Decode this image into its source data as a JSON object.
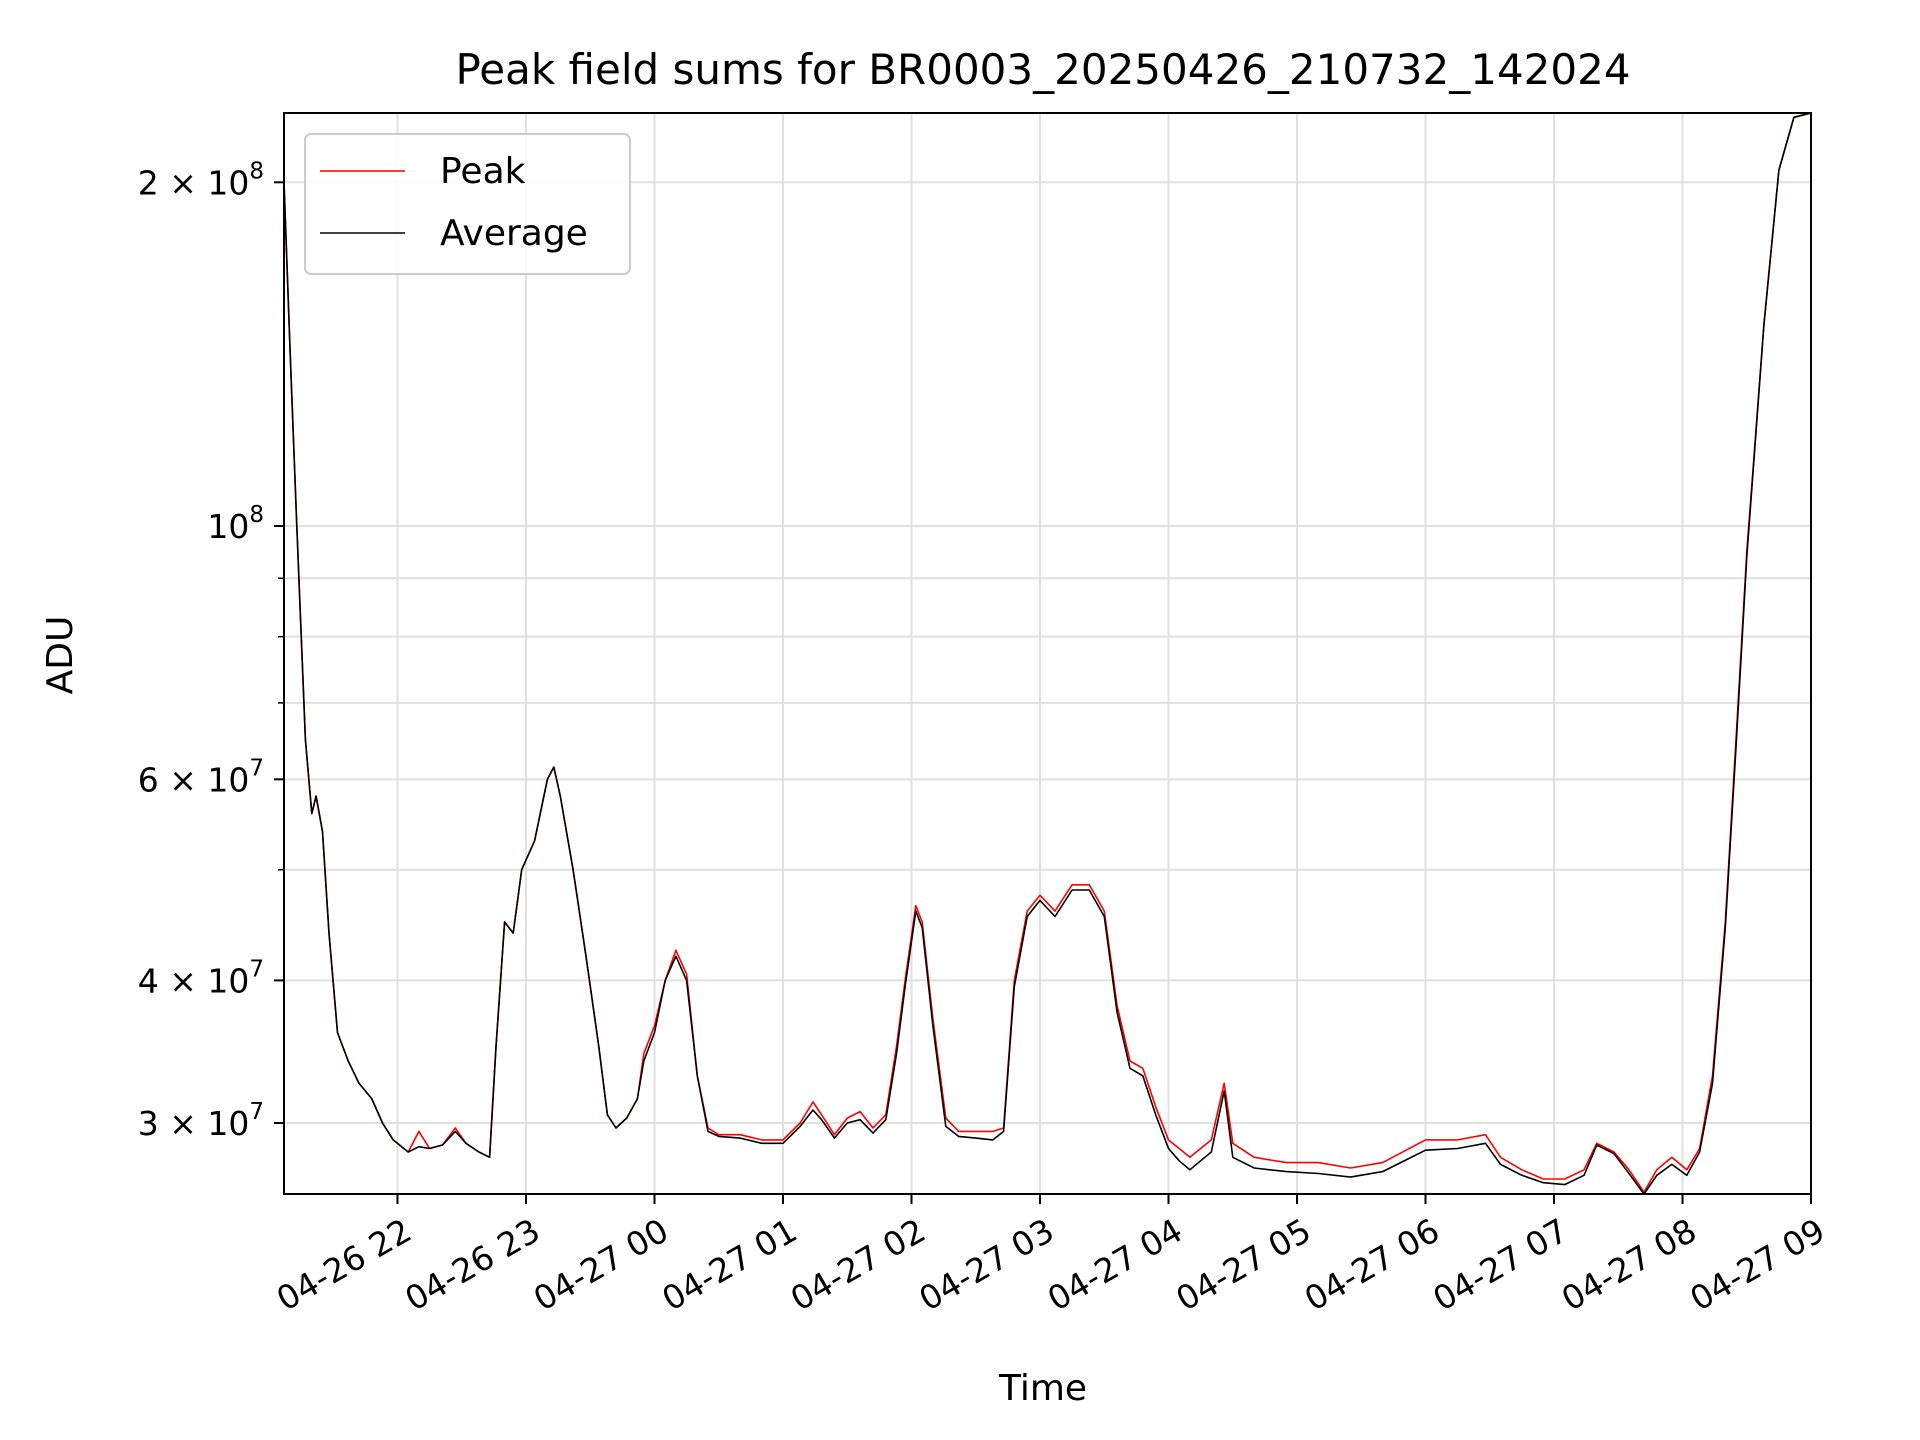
{
  "chart_data": {
    "type": "line",
    "title": "Peak field sums for BR0003_20250426_210732_142024",
    "xlabel": "Time",
    "ylabel": "ADU",
    "y_scale": "log",
    "ylim": [
      26000000,
      230000000
    ],
    "xlim": [
      "2025-04-26 21:07",
      "2025-04-27 09:00"
    ],
    "x_ticks": [
      {
        "t": "2025-04-26 22:00",
        "label": "04-26 22"
      },
      {
        "t": "2025-04-26 23:00",
        "label": "04-26 23"
      },
      {
        "t": "2025-04-27 00:00",
        "label": "04-27 00"
      },
      {
        "t": "2025-04-27 01:00",
        "label": "04-27 01"
      },
      {
        "t": "2025-04-27 02:00",
        "label": "04-27 02"
      },
      {
        "t": "2025-04-27 03:00",
        "label": "04-27 03"
      },
      {
        "t": "2025-04-27 04:00",
        "label": "04-27 04"
      },
      {
        "t": "2025-04-27 05:00",
        "label": "04-27 05"
      },
      {
        "t": "2025-04-27 06:00",
        "label": "04-27 06"
      },
      {
        "t": "2025-04-27 07:00",
        "label": "04-27 07"
      },
      {
        "t": "2025-04-27 08:00",
        "label": "04-27 08"
      },
      {
        "t": "2025-04-27 09:00",
        "label": "04-27 09"
      }
    ],
    "y_ticks_major": [
      {
        "value": 30000000,
        "mantissa": "3",
        "exp": "7"
      },
      {
        "value": 40000000,
        "mantissa": "4",
        "exp": "7"
      },
      {
        "value": 60000000,
        "mantissa": "6",
        "exp": "7"
      },
      {
        "value": 100000000,
        "mantissa": "",
        "exp": "8"
      },
      {
        "value": 200000000,
        "mantissa": "2",
        "exp": "8"
      }
    ],
    "y_ticks_minor": [
      50000000,
      70000000,
      80000000,
      90000000
    ],
    "grid": true,
    "legend_position": "top-left",
    "series": [
      {
        "name": "Peak",
        "color": "#ff0000",
        "points": [
          [
            "2025-04-26 21:07",
            200000000
          ],
          [
            "2025-04-26 21:10",
            140000000
          ],
          [
            "2025-04-26 21:13",
            100000000
          ],
          [
            "2025-04-26 21:17",
            65000000
          ],
          [
            "2025-04-26 21:20",
            56000000
          ],
          [
            "2025-04-26 21:22",
            58000000
          ],
          [
            "2025-04-26 21:25",
            54000000
          ],
          [
            "2025-04-26 21:28",
            44000000
          ],
          [
            "2025-04-26 21:32",
            36000000
          ],
          [
            "2025-04-26 21:37",
            34000000
          ],
          [
            "2025-04-26 21:42",
            32500000
          ],
          [
            "2025-04-26 21:48",
            31500000
          ],
          [
            "2025-04-26 21:53",
            30000000
          ],
          [
            "2025-04-26 21:58",
            29000000
          ],
          [
            "2025-04-26 22:05",
            28300000
          ],
          [
            "2025-04-26 22:10",
            29500000
          ],
          [
            "2025-04-26 22:15",
            28500000
          ],
          [
            "2025-04-26 22:21",
            28700000
          ],
          [
            "2025-04-26 22:27",
            29700000
          ],
          [
            "2025-04-26 22:32",
            28800000
          ],
          [
            "2025-04-26 22:38",
            28300000
          ],
          [
            "2025-04-26 22:43",
            28000000
          ],
          [
            "2025-04-26 22:46",
            35000000
          ],
          [
            "2025-04-26 22:50",
            45000000
          ],
          [
            "2025-04-26 22:54",
            44000000
          ],
          [
            "2025-04-26 22:58",
            50000000
          ],
          [
            "2025-04-26 23:04",
            53000000
          ],
          [
            "2025-04-26 23:10",
            60000000
          ],
          [
            "2025-04-26 23:13",
            61500000
          ],
          [
            "2025-04-26 23:16",
            58000000
          ],
          [
            "2025-04-26 23:22",
            50000000
          ],
          [
            "2025-04-26 23:28",
            42000000
          ],
          [
            "2025-04-26 23:34",
            35000000
          ],
          [
            "2025-04-26 23:38",
            30500000
          ],
          [
            "2025-04-26 23:42",
            29700000
          ],
          [
            "2025-04-26 23:47",
            30300000
          ],
          [
            "2025-04-26 23:52",
            31500000
          ],
          [
            "2025-04-26 23:55",
            34500000
          ],
          [
            "2025-04-27 00:00",
            36500000
          ],
          [
            "2025-04-27 00:05",
            40000000
          ],
          [
            "2025-04-27 00:10",
            42500000
          ],
          [
            "2025-04-27 00:15",
            40500000
          ],
          [
            "2025-04-27 00:20",
            33000000
          ],
          [
            "2025-04-27 00:25",
            29700000
          ],
          [
            "2025-04-27 00:30",
            29300000
          ],
          [
            "2025-04-27 00:40",
            29300000
          ],
          [
            "2025-04-27 00:50",
            29000000
          ],
          [
            "2025-04-27 01:00",
            29000000
          ],
          [
            "2025-04-27 01:08",
            30000000
          ],
          [
            "2025-04-27 01:14",
            31300000
          ],
          [
            "2025-04-27 01:18",
            30500000
          ],
          [
            "2025-04-27 01:24",
            29300000
          ],
          [
            "2025-04-27 01:30",
            30300000
          ],
          [
            "2025-04-27 01:36",
            30700000
          ],
          [
            "2025-04-27 01:42",
            29700000
          ],
          [
            "2025-04-27 01:48",
            30500000
          ],
          [
            "2025-04-27 01:53",
            35000000
          ],
          [
            "2025-04-27 01:57",
            40000000
          ],
          [
            "2025-04-27 02:02",
            46500000
          ],
          [
            "2025-04-27 02:05",
            45000000
          ],
          [
            "2025-04-27 02:10",
            37000000
          ],
          [
            "2025-04-27 02:16",
            30300000
          ],
          [
            "2025-04-27 02:22",
            29500000
          ],
          [
            "2025-04-27 02:30",
            29500000
          ],
          [
            "2025-04-27 02:38",
            29500000
          ],
          [
            "2025-04-27 02:43",
            29700000
          ],
          [
            "2025-04-27 02:48",
            40000000
          ],
          [
            "2025-04-27 02:54",
            46000000
          ],
          [
            "2025-04-27 03:00",
            47500000
          ],
          [
            "2025-04-27 03:07",
            46000000
          ],
          [
            "2025-04-27 03:15",
            48500000
          ],
          [
            "2025-04-27 03:23",
            48500000
          ],
          [
            "2025-04-27 03:30",
            46000000
          ],
          [
            "2025-04-27 03:36",
            38000000
          ],
          [
            "2025-04-27 03:42",
            34000000
          ],
          [
            "2025-04-27 03:48",
            33500000
          ],
          [
            "2025-04-27 03:54",
            31000000
          ],
          [
            "2025-04-27 04:00",
            29000000
          ],
          [
            "2025-04-27 04:05",
            28500000
          ],
          [
            "2025-04-27 04:10",
            28000000
          ],
          [
            "2025-04-27 04:15",
            28500000
          ],
          [
            "2025-04-27 04:20",
            29000000
          ],
          [
            "2025-04-27 04:26",
            32500000
          ],
          [
            "2025-04-27 04:30",
            28800000
          ],
          [
            "2025-04-27 04:40",
            28000000
          ],
          [
            "2025-04-27 04:55",
            27700000
          ],
          [
            "2025-04-27 05:10",
            27700000
          ],
          [
            "2025-04-27 05:25",
            27400000
          ],
          [
            "2025-04-27 05:40",
            27700000
          ],
          [
            "2025-04-27 06:00",
            29000000
          ],
          [
            "2025-04-27 06:15",
            29000000
          ],
          [
            "2025-04-27 06:28",
            29300000
          ],
          [
            "2025-04-27 06:35",
            28000000
          ],
          [
            "2025-04-27 06:45",
            27300000
          ],
          [
            "2025-04-27 06:55",
            26800000
          ],
          [
            "2025-04-27 07:05",
            26800000
          ],
          [
            "2025-04-27 07:14",
            27300000
          ],
          [
            "2025-04-27 07:20",
            28800000
          ],
          [
            "2025-04-27 07:28",
            28300000
          ],
          [
            "2025-04-27 07:35",
            27300000
          ],
          [
            "2025-04-27 07:42",
            26100000
          ],
          [
            "2025-04-27 07:48",
            27300000
          ],
          [
            "2025-04-27 07:55",
            28000000
          ],
          [
            "2025-04-27 08:02",
            27300000
          ],
          [
            "2025-04-27 08:08",
            28500000
          ],
          [
            "2025-04-27 08:14",
            33000000
          ],
          [
            "2025-04-27 08:20",
            45000000
          ],
          [
            "2025-04-27 08:25",
            65000000
          ],
          [
            "2025-04-27 08:30",
            95000000
          ],
          [
            "2025-04-27 08:38",
            150000000
          ],
          [
            "2025-04-27 08:45",
            205000000
          ],
          [
            "2025-04-27 08:52",
            228000000
          ],
          [
            "2025-04-27 09:00",
            230000000
          ]
        ]
      },
      {
        "name": "Average",
        "color": "#000000",
        "points": [
          [
            "2025-04-26 21:07",
            200000000
          ],
          [
            "2025-04-26 21:10",
            140000000
          ],
          [
            "2025-04-26 21:13",
            100000000
          ],
          [
            "2025-04-26 21:17",
            65000000
          ],
          [
            "2025-04-26 21:20",
            56000000
          ],
          [
            "2025-04-26 21:22",
            58000000
          ],
          [
            "2025-04-26 21:25",
            54000000
          ],
          [
            "2025-04-26 21:28",
            44000000
          ],
          [
            "2025-04-26 21:32",
            36000000
          ],
          [
            "2025-04-26 21:37",
            34000000
          ],
          [
            "2025-04-26 21:42",
            32500000
          ],
          [
            "2025-04-26 21:48",
            31500000
          ],
          [
            "2025-04-26 21:53",
            30000000
          ],
          [
            "2025-04-26 21:58",
            29000000
          ],
          [
            "2025-04-26 22:05",
            28300000
          ],
          [
            "2025-04-26 22:10",
            28600000
          ],
          [
            "2025-04-26 22:15",
            28500000
          ],
          [
            "2025-04-26 22:21",
            28700000
          ],
          [
            "2025-04-26 22:27",
            29500000
          ],
          [
            "2025-04-26 22:32",
            28800000
          ],
          [
            "2025-04-26 22:38",
            28300000
          ],
          [
            "2025-04-26 22:43",
            28000000
          ],
          [
            "2025-04-26 22:46",
            35000000
          ],
          [
            "2025-04-26 22:50",
            45000000
          ],
          [
            "2025-04-26 22:54",
            44000000
          ],
          [
            "2025-04-26 22:58",
            50000000
          ],
          [
            "2025-04-26 23:04",
            53000000
          ],
          [
            "2025-04-26 23:10",
            60000000
          ],
          [
            "2025-04-26 23:13",
            61500000
          ],
          [
            "2025-04-26 23:16",
            58000000
          ],
          [
            "2025-04-26 23:22",
            50000000
          ],
          [
            "2025-04-26 23:28",
            42000000
          ],
          [
            "2025-04-26 23:34",
            35000000
          ],
          [
            "2025-04-26 23:38",
            30500000
          ],
          [
            "2025-04-26 23:42",
            29700000
          ],
          [
            "2025-04-26 23:47",
            30300000
          ],
          [
            "2025-04-26 23:52",
            31500000
          ],
          [
            "2025-04-26 23:55",
            34000000
          ],
          [
            "2025-04-27 00:00",
            36000000
          ],
          [
            "2025-04-27 00:05",
            40000000
          ],
          [
            "2025-04-27 00:10",
            42000000
          ],
          [
            "2025-04-27 00:15",
            40000000
          ],
          [
            "2025-04-27 00:20",
            33000000
          ],
          [
            "2025-04-27 00:25",
            29500000
          ],
          [
            "2025-04-27 00:30",
            29200000
          ],
          [
            "2025-04-27 00:40",
            29100000
          ],
          [
            "2025-04-27 00:50",
            28800000
          ],
          [
            "2025-04-27 01:00",
            28800000
          ],
          [
            "2025-04-27 01:08",
            29800000
          ],
          [
            "2025-04-27 01:14",
            30800000
          ],
          [
            "2025-04-27 01:18",
            30200000
          ],
          [
            "2025-04-27 01:24",
            29100000
          ],
          [
            "2025-04-27 01:30",
            30000000
          ],
          [
            "2025-04-27 01:36",
            30200000
          ],
          [
            "2025-04-27 01:42",
            29400000
          ],
          [
            "2025-04-27 01:48",
            30200000
          ],
          [
            "2025-04-27 01:53",
            34500000
          ],
          [
            "2025-04-27 01:57",
            39500000
          ],
          [
            "2025-04-27 02:02",
            46000000
          ],
          [
            "2025-04-27 02:05",
            44500000
          ],
          [
            "2025-04-27 02:10",
            36500000
          ],
          [
            "2025-04-27 02:16",
            29800000
          ],
          [
            "2025-04-27 02:22",
            29200000
          ],
          [
            "2025-04-27 02:30",
            29100000
          ],
          [
            "2025-04-27 02:38",
            29000000
          ],
          [
            "2025-04-27 02:43",
            29500000
          ],
          [
            "2025-04-27 02:48",
            39500000
          ],
          [
            "2025-04-27 02:54",
            45500000
          ],
          [
            "2025-04-27 03:00",
            47000000
          ],
          [
            "2025-04-27 03:07",
            45500000
          ],
          [
            "2025-04-27 03:15",
            48000000
          ],
          [
            "2025-04-27 03:23",
            48000000
          ],
          [
            "2025-04-27 03:30",
            45500000
          ],
          [
            "2025-04-27 03:36",
            37500000
          ],
          [
            "2025-04-27 03:42",
            33500000
          ],
          [
            "2025-04-27 03:48",
            33000000
          ],
          [
            "2025-04-27 03:54",
            30500000
          ],
          [
            "2025-04-27 04:00",
            28500000
          ],
          [
            "2025-04-27 04:05",
            27800000
          ],
          [
            "2025-04-27 04:10",
            27300000
          ],
          [
            "2025-04-27 04:15",
            27800000
          ],
          [
            "2025-04-27 04:20",
            28300000
          ],
          [
            "2025-04-27 04:26",
            32000000
          ],
          [
            "2025-04-27 04:30",
            28000000
          ],
          [
            "2025-04-27 04:40",
            27400000
          ],
          [
            "2025-04-27 04:55",
            27200000
          ],
          [
            "2025-04-27 05:10",
            27100000
          ],
          [
            "2025-04-27 05:25",
            26900000
          ],
          [
            "2025-04-27 05:40",
            27200000
          ],
          [
            "2025-04-27 06:00",
            28400000
          ],
          [
            "2025-04-27 06:15",
            28500000
          ],
          [
            "2025-04-27 06:28",
            28800000
          ],
          [
            "2025-04-27 06:35",
            27600000
          ],
          [
            "2025-04-27 06:45",
            27000000
          ],
          [
            "2025-04-27 06:55",
            26600000
          ],
          [
            "2025-04-27 07:05",
            26500000
          ],
          [
            "2025-04-27 07:14",
            27000000
          ],
          [
            "2025-04-27 07:20",
            28700000
          ],
          [
            "2025-04-27 07:28",
            28200000
          ],
          [
            "2025-04-27 07:35",
            27100000
          ],
          [
            "2025-04-27 07:42",
            26000000
          ],
          [
            "2025-04-27 07:48",
            27000000
          ],
          [
            "2025-04-27 07:55",
            27600000
          ],
          [
            "2025-04-27 08:02",
            27000000
          ],
          [
            "2025-04-27 08:08",
            28300000
          ],
          [
            "2025-04-27 08:14",
            32500000
          ],
          [
            "2025-04-27 08:20",
            44500000
          ],
          [
            "2025-04-27 08:25",
            64000000
          ],
          [
            "2025-04-27 08:30",
            94000000
          ],
          [
            "2025-04-27 08:38",
            150000000
          ],
          [
            "2025-04-27 08:45",
            205000000
          ],
          [
            "2025-04-27 08:52",
            228000000
          ],
          [
            "2025-04-27 09:00",
            230000000
          ]
        ]
      }
    ]
  }
}
